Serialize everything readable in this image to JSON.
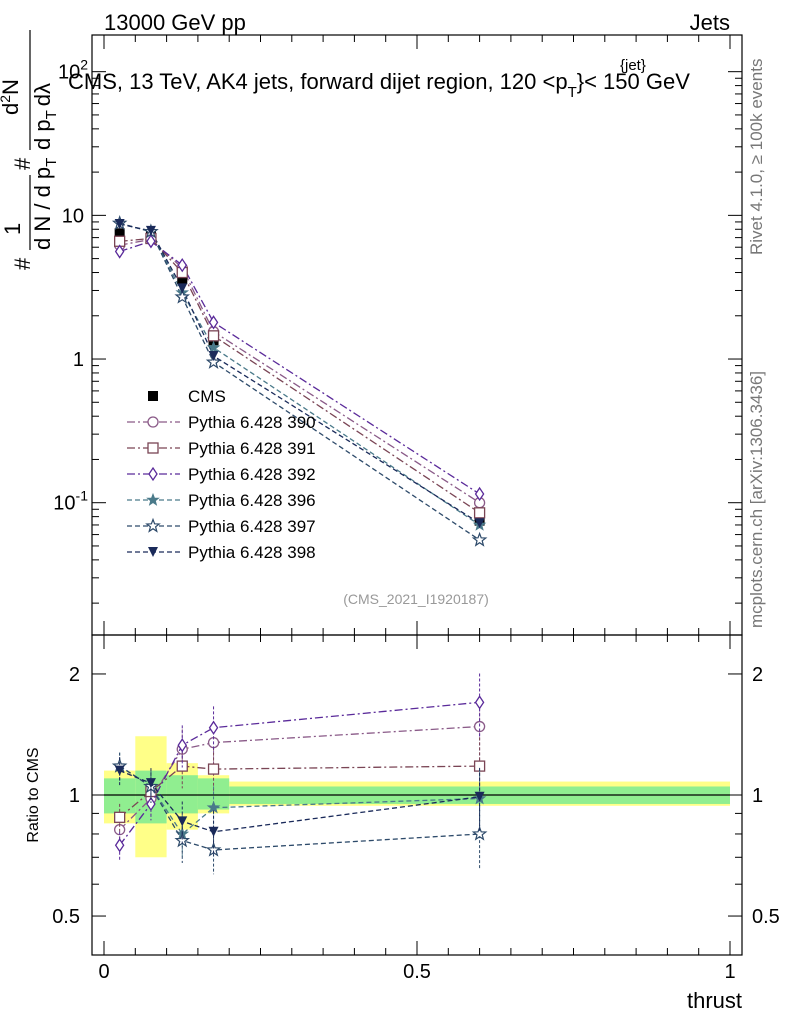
{
  "header": {
    "energy": "13000 GeV pp",
    "category": "Jets",
    "plot_title": "CMS, 13 TeV, AK4 jets, forward dijet region, 120 <p",
    "plot_title_sub": "T",
    "plot_title_sup": "{jet}",
    "plot_title_end": "}< 150 GeV",
    "ylabel": "1/(dN/dp_T) d²N/(dp_T dλ)",
    "ylabel_parts": [
      "#",
      "1",
      "d N / d p",
      "T",
      "#",
      "d",
      "2",
      "N",
      "d p",
      "T",
      "dλ"
    ],
    "side_rivet": "Rivet 4.1.0, ≥ 100k events",
    "side_mcplots": "mcplots.cern.ch [arXiv:1306.3436]",
    "analysis_tag": "(CMS_2021_I1920187)",
    "xlabel": "thrust",
    "ratio_ylabel": "Ratio to CMS"
  },
  "colors": {
    "p390": "#8a5a88",
    "p391": "#7a4555",
    "p392": "#5a2a9a",
    "p396": "#4a7a8a",
    "p397": "#2d4a6a",
    "p398": "#1a2a5a",
    "band_inner": "#90ee90",
    "band_outer": "#ffff88"
  },
  "chart_data": [
    {
      "type": "line",
      "panel": "main",
      "yscale": "log",
      "xlim": [
        0,
        1
      ],
      "ylim": [
        0.012,
        180
      ],
      "ytick_labels": [
        "10^-1",
        "1",
        "10",
        "10^2"
      ],
      "x": [
        0.025,
        0.075,
        0.125,
        0.175,
        0.6
      ],
      "series": [
        {
          "name": "CMS",
          "marker": "square-filled",
          "values": [
            7.5,
            7.2,
            3.6,
            1.35,
            0.075
          ],
          "errors": [
            0.5,
            0.4,
            0.25,
            0.15,
            0.008
          ]
        },
        {
          "name": "Pythia 6.428 390",
          "marker": "circle-open",
          "style": "dashdot",
          "values": [
            6.2,
            6.8,
            4.3,
            1.55,
            0.1
          ]
        },
        {
          "name": "Pythia 6.428 391",
          "marker": "square-open",
          "style": "dashdot",
          "values": [
            6.6,
            6.9,
            4.0,
            1.45,
            0.085
          ]
        },
        {
          "name": "Pythia 6.428 392",
          "marker": "diamond-open",
          "style": "dashdot",
          "values": [
            5.6,
            6.6,
            4.5,
            1.8,
            0.115
          ]
        },
        {
          "name": "Pythia 6.428 396",
          "marker": "star-filled",
          "style": "dashed",
          "values": [
            8.8,
            7.7,
            2.9,
            1.2,
            0.07
          ]
        },
        {
          "name": "Pythia 6.428 397",
          "marker": "star-open",
          "style": "dashed",
          "values": [
            8.8,
            7.7,
            2.7,
            0.95,
            0.055
          ]
        },
        {
          "name": "Pythia 6.428 398",
          "marker": "triangle-down-filled",
          "style": "dashed",
          "values": [
            8.7,
            7.8,
            3.1,
            1.05,
            0.072
          ]
        }
      ]
    },
    {
      "type": "line",
      "panel": "ratio",
      "xlim": [
        0,
        1
      ],
      "ylim": [
        0.4,
        2.5
      ],
      "ytick_labels": [
        "0.5",
        "1",
        "2"
      ],
      "xtick_labels": [
        "0",
        "0.5",
        "1"
      ],
      "x": [
        0.025,
        0.075,
        0.125,
        0.175,
        0.6
      ],
      "bands": [
        {
          "name": "stat",
          "edges": [
            0,
            0.05,
            0.1,
            0.15,
            0.2,
            1.0
          ],
          "lo": [
            0.9,
            0.85,
            0.9,
            0.92,
            0.95
          ],
          "hi": [
            1.1,
            1.15,
            1.12,
            1.1,
            1.05
          ]
        },
        {
          "name": "total",
          "edges": [
            0,
            0.05,
            0.1,
            0.15,
            0.2,
            1.0
          ],
          "lo": [
            0.85,
            0.7,
            0.82,
            0.9,
            0.94
          ],
          "hi": [
            1.15,
            1.4,
            1.2,
            1.12,
            1.08
          ]
        }
      ],
      "series": [
        {
          "name": "Pythia 6.428 390",
          "values": [
            0.82,
            0.98,
            1.3,
            1.35,
            1.48
          ]
        },
        {
          "name": "Pythia 6.428 391",
          "values": [
            0.88,
            1.02,
            1.18,
            1.16,
            1.18
          ]
        },
        {
          "name": "Pythia 6.428 392",
          "values": [
            0.75,
            0.95,
            1.33,
            1.47,
            1.7
          ]
        },
        {
          "name": "Pythia 6.428 396",
          "values": [
            1.18,
            1.05,
            0.8,
            0.93,
            0.98
          ]
        },
        {
          "name": "Pythia 6.428 397",
          "values": [
            1.18,
            1.05,
            0.77,
            0.73,
            0.8
          ]
        },
        {
          "name": "Pythia 6.428 398",
          "values": [
            1.15,
            1.07,
            0.86,
            0.81,
            0.99
          ]
        }
      ]
    }
  ]
}
